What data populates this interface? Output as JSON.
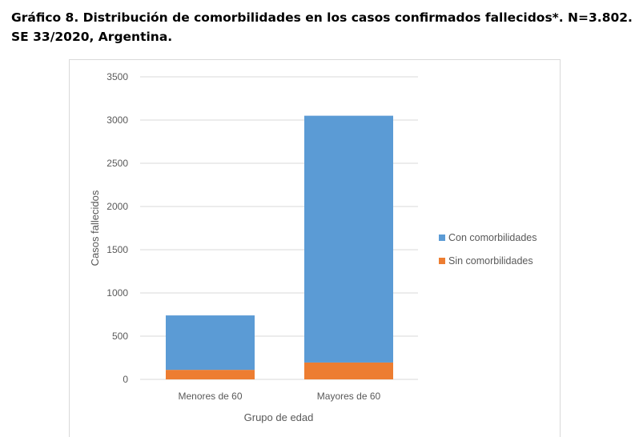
{
  "title": {
    "line1": "Gráfico 8. Distribución de comorbilidades en los casos confirmados fallecidos*. N=3.802.",
    "line2": "SE 33/2020, Argentina."
  },
  "colors": {
    "con": "#5b9bd5",
    "sin": "#ed7d31",
    "grid": "#d9d9d9",
    "text": "#595959"
  },
  "chart_data": {
    "type": "bar",
    "stacked": true,
    "categories": [
      "Menores de 60",
      "Mayores de 60"
    ],
    "series": [
      {
        "name": "Sin comorbilidades",
        "values": [
          110,
          195
        ]
      },
      {
        "name": "Con comorbilidades",
        "values": [
          630,
          2855
        ]
      }
    ],
    "xlabel": "Grupo de edad",
    "ylabel": "Casos fallecidos",
    "ylim": [
      0,
      3500
    ],
    "yticks": [
      0,
      500,
      1000,
      1500,
      2000,
      2500,
      3000,
      3500
    ],
    "grid": true,
    "legend": "right",
    "legend_items": [
      "Con comorbilidades",
      "Sin comorbilidades"
    ]
  }
}
